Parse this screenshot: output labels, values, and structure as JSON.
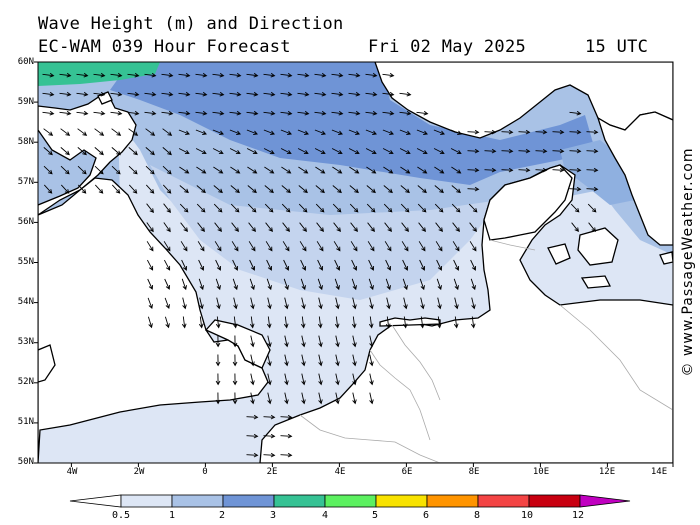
{
  "header": {
    "title": "Wave Height (m) and Direction",
    "model": "EC-WAM 039 Hour Forecast",
    "valid_date": "Fri 02 May 2025",
    "valid_time": "15 UTC"
  },
  "credit": "© www.PassageWeather.com",
  "axes": {
    "lat_labels": [
      "60N",
      "59N",
      "58N",
      "57N",
      "56N",
      "55N",
      "54N",
      "53N",
      "52N",
      "51N",
      "50N"
    ],
    "lon_labels": [
      "4W",
      "2W",
      "0",
      "2E",
      "4E",
      "6E",
      "8E",
      "10E",
      "12E",
      "14E"
    ]
  },
  "colorbar": {
    "ticks": [
      "0.5",
      "1",
      "2",
      "3",
      "4",
      "5",
      "6",
      "8",
      "10",
      "12"
    ],
    "colors": [
      "#dde6f5",
      "#a9c2e6",
      "#6f94d6",
      "#36c294",
      "#5cf060",
      "#f8e200",
      "#ff9400",
      "#f34444",
      "#c80010",
      "#c000c0"
    ]
  },
  "layers": {
    "sea_1_2m": "#a9c2e6",
    "sea_0_5_1m": "#dde6f5",
    "sea_2_3m": "#6f94d6",
    "sea_3_4m": "#36c294",
    "land": "#ffffff",
    "coast": "#000000",
    "borders": "#aaaaaa"
  }
}
